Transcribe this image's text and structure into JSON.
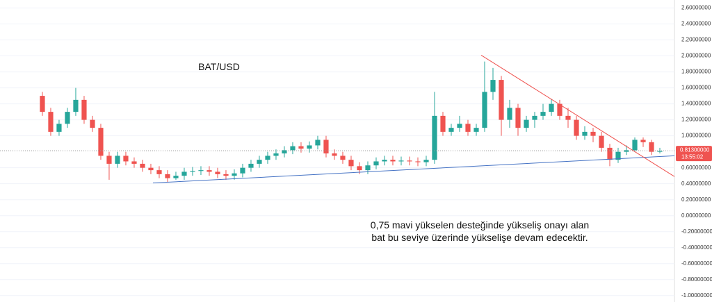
{
  "chart_data": {
    "type": "candlestick",
    "title": "BAT/USD",
    "annotation": [
      "0,75 mavi yükselen desteğinde yükseliş onayı alan",
      "bat bu seviye üzerinde yükselişe devam edecektir."
    ],
    "up_color": "#26a69a",
    "down_color": "#ef5350",
    "open": [
      1.5,
      1.3,
      1.05,
      1.15,
      1.3,
      1.45,
      1.2,
      1.1,
      0.75,
      0.65,
      0.75,
      0.68,
      0.65,
      0.6,
      0.57,
      0.52,
      0.47,
      0.5,
      0.55,
      0.56,
      0.57,
      0.55,
      0.52,
      0.5,
      0.53,
      0.6,
      0.65,
      0.7,
      0.75,
      0.78,
      0.82,
      0.87,
      0.84,
      0.88,
      0.95,
      0.78,
      0.75,
      0.7,
      0.62,
      0.57,
      0.63,
      0.68,
      0.7,
      0.68,
      0.69,
      0.68,
      0.67,
      0.7,
      1.25,
      1.05,
      1.1,
      1.15,
      1.05,
      1.1,
      1.55,
      1.7,
      1.2,
      1.35,
      1.1,
      1.2,
      1.25,
      1.3,
      1.4,
      1.25,
      1.2,
      1.0,
      1.05,
      1.0,
      0.85,
      0.7,
      0.8,
      0.82,
      0.95,
      0.92,
      0.8
    ],
    "high": [
      1.55,
      1.35,
      1.2,
      1.35,
      1.6,
      1.5,
      1.25,
      1.15,
      0.8,
      0.8,
      0.8,
      0.73,
      0.7,
      0.65,
      0.62,
      0.57,
      0.55,
      0.6,
      0.61,
      0.62,
      0.62,
      0.6,
      0.57,
      0.58,
      0.65,
      0.7,
      0.75,
      0.8,
      0.83,
      0.87,
      0.92,
      0.92,
      0.93,
      1.0,
      1.0,
      0.83,
      0.8,
      0.75,
      0.67,
      0.68,
      0.73,
      0.75,
      0.75,
      0.74,
      0.74,
      0.73,
      0.75,
      1.55,
      1.3,
      1.15,
      1.25,
      1.2,
      1.15,
      1.93,
      1.85,
      1.75,
      1.45,
      1.4,
      1.25,
      1.3,
      1.4,
      1.46,
      1.45,
      1.35,
      1.25,
      1.12,
      1.1,
      1.05,
      0.9,
      0.85,
      0.88,
      0.98,
      0.98,
      0.95,
      0.85
    ],
    "low": [
      1.25,
      1.0,
      1.0,
      1.1,
      1.25,
      1.15,
      1.05,
      0.7,
      0.45,
      0.6,
      0.63,
      0.6,
      0.55,
      0.52,
      0.47,
      0.42,
      0.45,
      0.45,
      0.5,
      0.51,
      0.5,
      0.47,
      0.45,
      0.45,
      0.48,
      0.55,
      0.6,
      0.65,
      0.7,
      0.73,
      0.77,
      0.79,
      0.79,
      0.83,
      0.73,
      0.7,
      0.65,
      0.57,
      0.52,
      0.52,
      0.58,
      0.63,
      0.63,
      0.63,
      0.63,
      0.62,
      0.62,
      0.65,
      1.0,
      1.0,
      1.05,
      1.0,
      1.0,
      1.05,
      1.45,
      1.0,
      1.1,
      1.0,
      1.05,
      1.1,
      1.2,
      1.25,
      1.2,
      1.1,
      0.95,
      0.95,
      0.92,
      0.8,
      0.62,
      0.66,
      0.76,
      0.8,
      0.86,
      0.76,
      0.78
    ],
    "close": [
      1.3,
      1.05,
      1.15,
      1.3,
      1.45,
      1.2,
      1.1,
      0.75,
      0.65,
      0.75,
      0.68,
      0.65,
      0.6,
      0.57,
      0.52,
      0.47,
      0.5,
      0.55,
      0.56,
      0.57,
      0.55,
      0.52,
      0.5,
      0.53,
      0.6,
      0.65,
      0.7,
      0.75,
      0.78,
      0.82,
      0.87,
      0.84,
      0.88,
      0.95,
      0.78,
      0.75,
      0.7,
      0.62,
      0.57,
      0.63,
      0.68,
      0.7,
      0.68,
      0.69,
      0.68,
      0.67,
      0.7,
      1.25,
      1.05,
      1.1,
      1.15,
      1.05,
      1.1,
      1.55,
      1.7,
      1.2,
      1.35,
      1.1,
      1.2,
      1.25,
      1.3,
      1.4,
      1.25,
      1.2,
      1.0,
      1.05,
      1.0,
      0.85,
      0.7,
      0.8,
      0.82,
      0.95,
      0.92,
      0.8,
      0.81
    ],
    "trendlines": [
      {
        "color": "#4472c4",
        "x": [
          13.25,
          75.75
        ],
        "y": [
          0.41,
          0.75
        ]
      },
      {
        "color": "#ef5350",
        "x": [
          52.58,
          75.75
        ],
        "y": [
          2.01,
          0.49
        ]
      }
    ],
    "last_price": {
      "value": 0.813,
      "label": "0.81300000"
    },
    "countdown": "13:55:02",
    "xlim": [
      -5.08,
      75.75
    ],
    "ylim": [
      -1.08,
      2.7
    ],
    "grid": true,
    "yticks": [
      {
        "value": 2.6,
        "label": "2.60000000"
      },
      {
        "value": 2.4,
        "label": "2.40000000"
      },
      {
        "value": 2.2,
        "label": "2.20000000"
      },
      {
        "value": 2.0,
        "label": "2.00000000"
      },
      {
        "value": 1.8,
        "label": "1.80000000"
      },
      {
        "value": 1.6,
        "label": "1.60000000"
      },
      {
        "value": 1.4,
        "label": "1.40000000"
      },
      {
        "value": 1.2,
        "label": "1.20000000"
      },
      {
        "value": 1.0,
        "label": "1.00000000"
      },
      {
        "value": 0.6,
        "label": "0.60000000"
      },
      {
        "value": 0.4,
        "label": "0.40000000"
      },
      {
        "value": 0.2,
        "label": "0.20000000"
      },
      {
        "value": 0,
        "label": "0.00000000"
      },
      {
        "value": -0.2,
        "label": "-0.20000000"
      },
      {
        "value": -0.4,
        "label": "-0.40000000"
      },
      {
        "value": -0.6,
        "label": "-0.60000000"
      },
      {
        "value": -0.8,
        "label": "-0.80000000"
      },
      {
        "value": -1.0,
        "label": "-1.00000000"
      }
    ]
  }
}
